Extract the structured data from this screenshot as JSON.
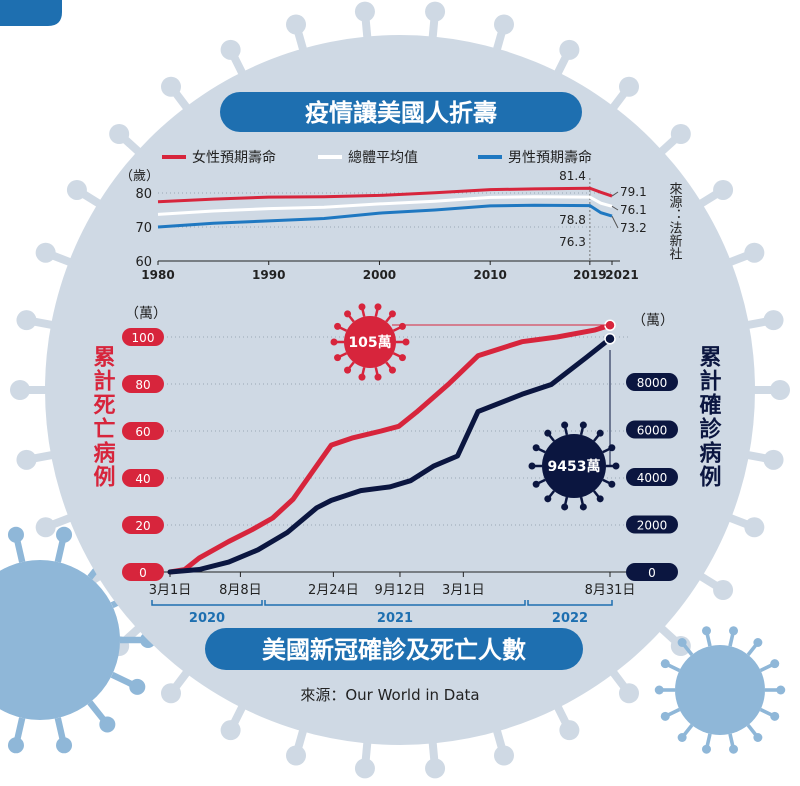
{
  "top_title": "疫情讓美國人折壽",
  "bottom_title": "美國新冠確診及死亡人數",
  "bottom_source": "來源：Our World in Data",
  "colors": {
    "red": "#d7253c",
    "navy": "#0b1640",
    "blue": "#1f78c1",
    "bg_circle": "#cfd9e4",
    "virus": "#b3cde2",
    "title_bg": "#1e6fb0"
  },
  "chart_data": [
    {
      "type": "line",
      "title": "疫情讓美國人折壽",
      "ylabel": "（歲）",
      "source": "來源：法新社",
      "xlim": [
        1980,
        2021
      ],
      "ylim": [
        60,
        85
      ],
      "x_ticks": [
        "1980",
        "1990",
        "2000",
        "2010",
        "2019",
        "2021"
      ],
      "y_ticks": [
        "80",
        "70",
        "60"
      ],
      "series": [
        {
          "name": "女性預期壽命",
          "color": "#d7253c",
          "x": [
            1980,
            1985,
            1990,
            1995,
            2000,
            2005,
            2010,
            2014,
            2019,
            2020,
            2021
          ],
          "y": [
            77.4,
            78.2,
            78.8,
            78.9,
            79.3,
            80.1,
            81.0,
            81.2,
            81.4,
            80.2,
            79.1
          ],
          "labels": {
            "2019": "81.4",
            "2021": "79.1"
          }
        },
        {
          "name": "總體平均值",
          "color": "#ffffff",
          "x": [
            1980,
            1985,
            1990,
            1995,
            2000,
            2005,
            2010,
            2014,
            2019,
            2020,
            2021
          ],
          "y": [
            73.7,
            74.7,
            75.4,
            75.8,
            76.8,
            77.6,
            78.7,
            78.9,
            78.8,
            77.0,
            76.1
          ],
          "labels": {
            "2019": "78.8",
            "2021": "76.1"
          }
        },
        {
          "name": "男性預期壽命",
          "color": "#1f78c1",
          "x": [
            1980,
            1985,
            1990,
            1995,
            2000,
            2005,
            2010,
            2014,
            2019,
            2020,
            2021
          ],
          "y": [
            70.0,
            71.1,
            71.8,
            72.5,
            74.1,
            75.0,
            76.2,
            76.4,
            76.3,
            74.2,
            73.2
          ],
          "labels": {
            "2019": "76.3",
            "2021": "73.2"
          }
        }
      ]
    },
    {
      "type": "line",
      "title": "美國新冠確診及死亡人數",
      "left_unit": "（萬）",
      "right_unit": "（萬）",
      "left_axis_label": "累計死亡病例",
      "right_axis_label": "累計確診病例",
      "left_ylim": [
        0,
        100
      ],
      "right_ylim": [
        0,
        8000
      ],
      "left_ticks": [
        "100",
        "80",
        "60",
        "40",
        "20",
        "0"
      ],
      "right_ticks": [
        "8000",
        "6000",
        "4000",
        "2000",
        "0"
      ],
      "x_tick_labels": [
        "3月1日",
        "8月8日",
        "2月24日",
        "9月12日",
        "3月1日",
        "8月31日"
      ],
      "x_tick_t": [
        0,
        0.24,
        0.557,
        0.784,
        1.0,
        1.5
      ],
      "year_labels": [
        "2020",
        "2021",
        "2022"
      ],
      "series": [
        {
          "name": "累計死亡病例",
          "axis": "left",
          "color": "#d7253c",
          "t": [
            0,
            0.05,
            0.1,
            0.2,
            0.28,
            0.35,
            0.42,
            0.55,
            0.62,
            0.72,
            0.78,
            0.84,
            0.95,
            1.05,
            1.2,
            1.32,
            1.45,
            1.5
          ],
          "values": [
            0,
            1,
            6,
            13,
            18,
            23,
            31,
            54,
            57,
            60,
            62,
            68,
            80,
            92,
            98,
            100,
            103,
            105
          ],
          "end_label": "105萬"
        },
        {
          "name": "累計確診病例",
          "axis": "right",
          "color": "#0b1640",
          "t": [
            0,
            0.1,
            0.2,
            0.3,
            0.4,
            0.5,
            0.55,
            0.65,
            0.75,
            0.82,
            0.9,
            0.98,
            1.05,
            1.2,
            1.3,
            1.42,
            1.5
          ],
          "values": [
            0,
            100,
            400,
            900,
            1600,
            2600,
            2900,
            3300,
            3450,
            3700,
            4300,
            4700,
            6500,
            7200,
            7600,
            8700,
            9453
          ],
          "end_label": "9453萬"
        }
      ]
    }
  ]
}
